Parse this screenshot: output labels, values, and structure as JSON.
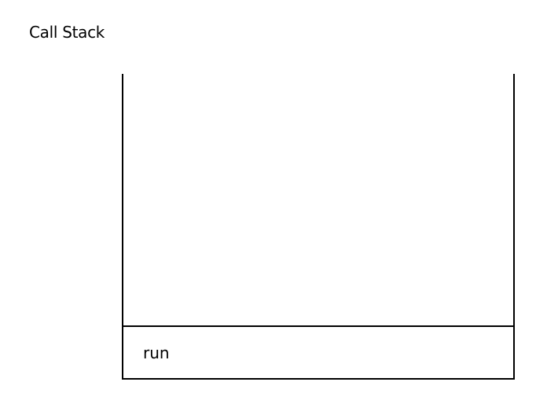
{
  "title": "Call Stack",
  "stack": {
    "frames": [
      {
        "label": "run"
      }
    ]
  }
}
